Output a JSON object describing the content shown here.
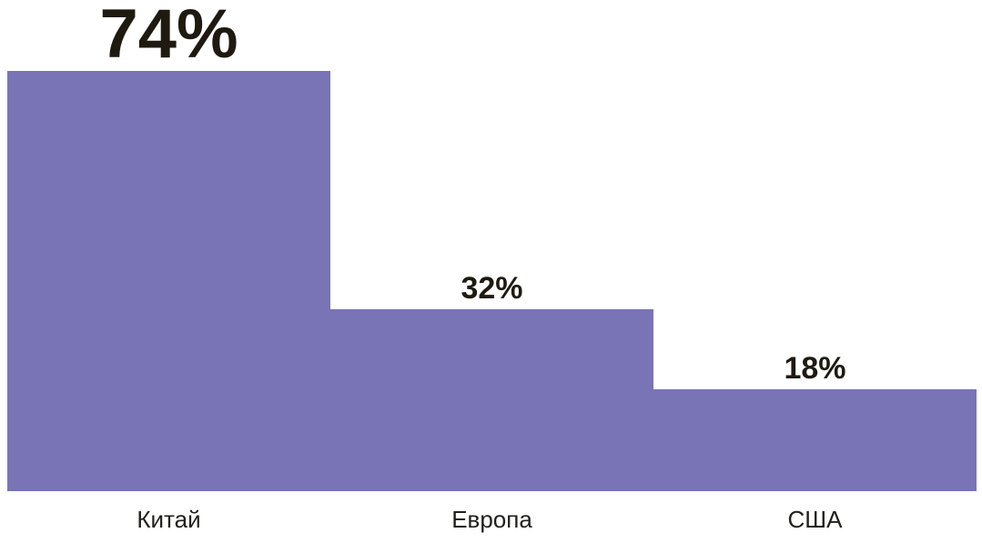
{
  "chart_data": {
    "type": "bar",
    "categories": [
      "Китай",
      "Европа",
      "США"
    ],
    "values": [
      74,
      32,
      18
    ],
    "value_labels": [
      "74%",
      "32%",
      "18%"
    ],
    "ylim": [
      0,
      74
    ],
    "grid": false,
    "legend": "none",
    "bar_color": "#7874b5",
    "value_label_color": "#1f1a10",
    "category_label_color": "#21201c"
  }
}
